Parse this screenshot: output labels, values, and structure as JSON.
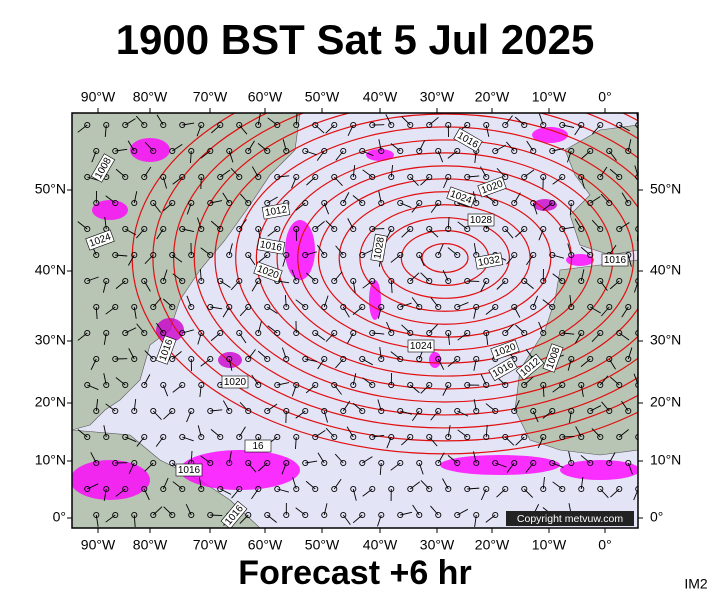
{
  "title": "1900 BST Sat 5 Jul 2025",
  "map": {
    "longitudes": [
      "90°W",
      "80°W",
      "70°W",
      "60°W",
      "50°W",
      "40°W",
      "30°W",
      "20°W",
      "10°W",
      "0°"
    ],
    "latitudes": [
      "50°N",
      "40°N",
      "30°N",
      "20°N",
      "10°N",
      "0°"
    ],
    "isobar_labels": [
      "1008",
      "1016",
      "1020",
      "1024",
      "1028",
      "1032",
      "1012",
      "1016",
      "1020",
      "1028",
      "1024",
      "1016",
      "1024",
      "1020",
      "1016",
      "1012",
      "1008",
      "1016",
      "1020",
      "16",
      "1016",
      "1016"
    ],
    "copyright": "Copyright metvuw.com"
  },
  "footer": "Forecast +6 hr",
  "image_id": "IM2"
}
